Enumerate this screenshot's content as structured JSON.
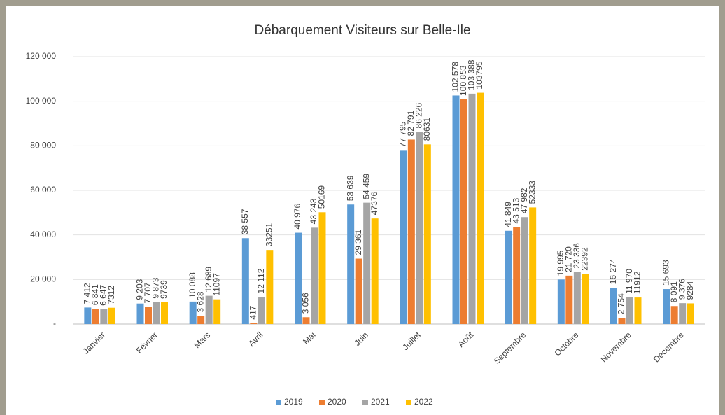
{
  "chart_data": {
    "type": "bar",
    "title": "Débarquement Visiteurs sur Belle-Ile",
    "categories": [
      "Janvier",
      "Février",
      "Mars",
      "Avril",
      "Mai",
      "Juin",
      "Juillet",
      "Août",
      "Septembre",
      "Octobre",
      "Novembre",
      "Décembre"
    ],
    "series": [
      {
        "name": "2019",
        "color": "#5b9bd5",
        "values": [
          7412,
          9203,
          10088,
          38557,
          40976,
          53639,
          77795,
          102578,
          41849,
          19995,
          16274,
          15693
        ],
        "value_labels": [
          "7 412",
          "9 203",
          "10 088",
          "38 557",
          "40 976",
          "53 639",
          "77 795",
          "102 578",
          "41 849",
          "19 995",
          "16 274",
          "15 693"
        ]
      },
      {
        "name": "2020",
        "color": "#ed7d31",
        "values": [
          6841,
          7707,
          3628,
          417,
          3056,
          29361,
          82791,
          100853,
          43513,
          21720,
          2754,
          8091
        ],
        "value_labels": [
          "6 841",
          "7 707",
          "3 628",
          "417",
          "3 056",
          "29 361",
          "82 791",
          "100 853",
          "43 513",
          "21 720",
          "2 754",
          "8 091"
        ]
      },
      {
        "name": "2021",
        "color": "#a5a5a5",
        "values": [
          6647,
          9873,
          12689,
          12112,
          43243,
          54459,
          86226,
          103388,
          47982,
          23336,
          11970,
          9376
        ],
        "value_labels": [
          "6 647",
          "9 873",
          "12 689",
          "12 112",
          "43 243",
          "54 459",
          "86 226",
          "103 388",
          "47 982",
          "23 336",
          "11 970",
          "9 376"
        ]
      },
      {
        "name": "2022",
        "color": "#ffc000",
        "values": [
          7312,
          9739,
          11097,
          33251,
          50169,
          47376,
          80631,
          103795,
          52333,
          22392,
          11912,
          9284
        ]
      }
    ],
    "ylim": [
      0,
      120000
    ],
    "yticks": [
      {
        "value": 0,
        "label": "-"
      },
      {
        "value": 20000,
        "label": "20 000"
      },
      {
        "value": 40000,
        "label": "40 000"
      },
      {
        "value": 60000,
        "label": "60 000"
      },
      {
        "value": 80000,
        "label": "80 000"
      },
      {
        "value": 100000,
        "label": "100 000"
      },
      {
        "value": 120000,
        "label": "120 000"
      }
    ],
    "grid": true,
    "legend": "bottom"
  }
}
